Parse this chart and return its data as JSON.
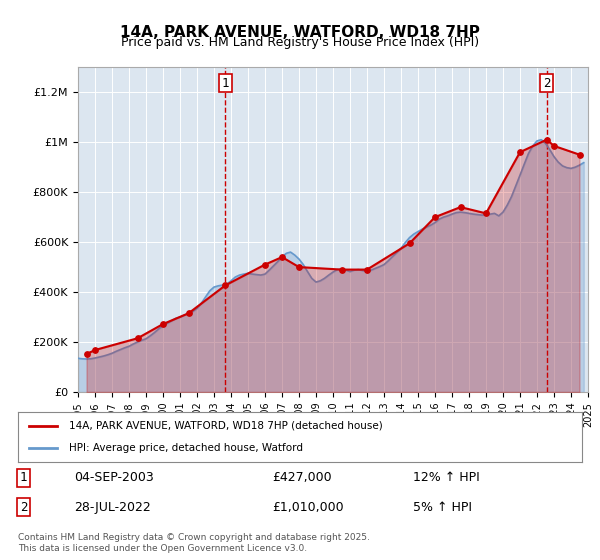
{
  "title": "14A, PARK AVENUE, WATFORD, WD18 7HP",
  "subtitle": "Price paid vs. HM Land Registry's House Price Index (HPI)",
  "ylabel": "",
  "background_color": "#dce6f0",
  "plot_bg_color": "#dce6f0",
  "fig_bg_color": "#ffffff",
  "ylim": [
    0,
    1300000
  ],
  "yticks": [
    0,
    200000,
    400000,
    600000,
    800000,
    1000000,
    1200000
  ],
  "ytick_labels": [
    "£0",
    "£200K",
    "£400K",
    "£600K",
    "£800K",
    "£1M",
    "£1.2M"
  ],
  "xmin_year": 1995,
  "xmax_year": 2025,
  "xtick_years": [
    1995,
    1996,
    1997,
    1998,
    1999,
    2000,
    2001,
    2002,
    2003,
    2004,
    2005,
    2006,
    2007,
    2008,
    2009,
    2010,
    2011,
    2012,
    2013,
    2014,
    2015,
    2016,
    2017,
    2018,
    2019,
    2020,
    2021,
    2022,
    2023,
    2024,
    2025
  ],
  "marker1_x": 2003.67,
  "marker1_y": 427000,
  "marker1_label": "1",
  "marker1_date": "04-SEP-2003",
  "marker1_price": "£427,000",
  "marker1_hpi": "12% ↑ HPI",
  "marker2_x": 2022.57,
  "marker2_y": 1010000,
  "marker2_label": "2",
  "marker2_date": "28-JUL-2022",
  "marker2_price": "£1,010,000",
  "marker2_hpi": "5% ↑ HPI",
  "red_color": "#cc0000",
  "blue_color": "#6699cc",
  "legend_label_red": "14A, PARK AVENUE, WATFORD, WD18 7HP (detached house)",
  "legend_label_blue": "HPI: Average price, detached house, Watford",
  "footer": "Contains HM Land Registry data © Crown copyright and database right 2025.\nThis data is licensed under the Open Government Licence v3.0.",
  "hpi_data_x": [
    1995.0,
    1995.25,
    1995.5,
    1995.75,
    1996.0,
    1996.25,
    1996.5,
    1996.75,
    1997.0,
    1997.25,
    1997.5,
    1997.75,
    1998.0,
    1998.25,
    1998.5,
    1998.75,
    1999.0,
    1999.25,
    1999.5,
    1999.75,
    2000.0,
    2000.25,
    2000.5,
    2000.75,
    2001.0,
    2001.25,
    2001.5,
    2001.75,
    2002.0,
    2002.25,
    2002.5,
    2002.75,
    2003.0,
    2003.25,
    2003.5,
    2003.75,
    2004.0,
    2004.25,
    2004.5,
    2004.75,
    2005.0,
    2005.25,
    2005.5,
    2005.75,
    2006.0,
    2006.25,
    2006.5,
    2006.75,
    2007.0,
    2007.25,
    2007.5,
    2007.75,
    2008.0,
    2008.25,
    2008.5,
    2008.75,
    2009.0,
    2009.25,
    2009.5,
    2009.75,
    2010.0,
    2010.25,
    2010.5,
    2010.75,
    2011.0,
    2011.25,
    2011.5,
    2011.75,
    2012.0,
    2012.25,
    2012.5,
    2012.75,
    2013.0,
    2013.25,
    2013.5,
    2013.75,
    2014.0,
    2014.25,
    2014.5,
    2014.75,
    2015.0,
    2015.25,
    2015.5,
    2015.75,
    2016.0,
    2016.25,
    2016.5,
    2016.75,
    2017.0,
    2017.25,
    2017.5,
    2017.75,
    2018.0,
    2018.25,
    2018.5,
    2018.75,
    2019.0,
    2019.25,
    2019.5,
    2019.75,
    2020.0,
    2020.25,
    2020.5,
    2020.75,
    2021.0,
    2021.25,
    2021.5,
    2021.75,
    2022.0,
    2022.25,
    2022.5,
    2022.75,
    2023.0,
    2023.25,
    2023.5,
    2023.75,
    2024.0,
    2024.25,
    2024.5,
    2024.75
  ],
  "hpi_data_y": [
    135000,
    133000,
    132000,
    133000,
    136000,
    140000,
    144000,
    149000,
    155000,
    163000,
    170000,
    177000,
    183000,
    192000,
    200000,
    207000,
    213000,
    225000,
    238000,
    253000,
    265000,
    275000,
    285000,
    295000,
    300000,
    308000,
    315000,
    322000,
    335000,
    355000,
    380000,
    405000,
    420000,
    425000,
    428000,
    432000,
    445000,
    460000,
    468000,
    472000,
    475000,
    472000,
    470000,
    468000,
    472000,
    488000,
    505000,
    522000,
    540000,
    555000,
    560000,
    548000,
    532000,
    510000,
    482000,
    455000,
    440000,
    445000,
    455000,
    468000,
    480000,
    490000,
    492000,
    488000,
    482000,
    488000,
    490000,
    486000,
    482000,
    488000,
    495000,
    502000,
    510000,
    525000,
    542000,
    558000,
    575000,
    598000,
    618000,
    632000,
    642000,
    652000,
    660000,
    668000,
    678000,
    692000,
    700000,
    705000,
    712000,
    718000,
    720000,
    718000,
    715000,
    712000,
    710000,
    708000,
    710000,
    712000,
    715000,
    705000,
    720000,
    748000,
    782000,
    825000,
    868000,
    912000,
    955000,
    985000,
    1005000,
    1010000,
    995000,
    970000,
    942000,
    920000,
    905000,
    898000,
    895000,
    900000,
    908000,
    918000
  ],
  "price_data_x": [
    1995.5,
    1996.0,
    1998.5,
    2000.0,
    2001.5,
    2003.67,
    2006.0,
    2007.0,
    2008.0,
    2010.5,
    2012.0,
    2014.5,
    2016.0,
    2017.5,
    2019.0,
    2021.0,
    2022.57,
    2023.0,
    2024.5
  ],
  "price_data_y": [
    152000,
    168000,
    215000,
    272000,
    315000,
    427000,
    510000,
    540000,
    500000,
    490000,
    490000,
    595000,
    700000,
    740000,
    715000,
    960000,
    1010000,
    985000,
    950000
  ]
}
